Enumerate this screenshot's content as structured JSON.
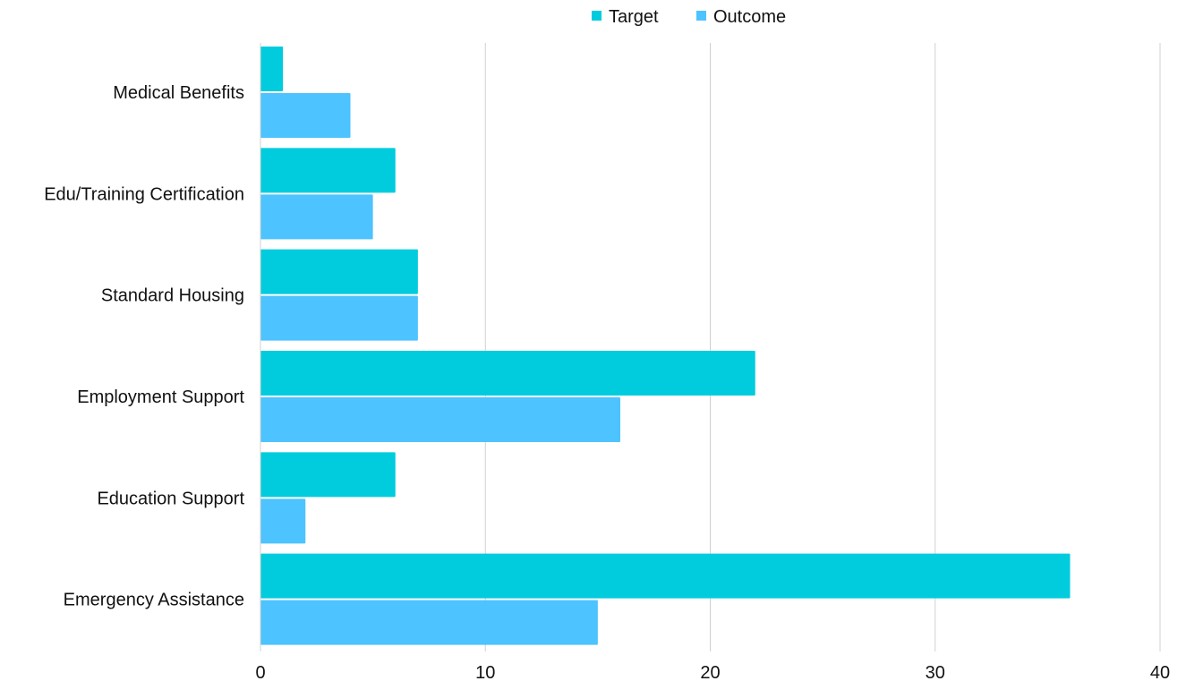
{
  "chart_data": {
    "type": "bar",
    "orientation": "horizontal",
    "categories": [
      "Medical Benefits",
      "Edu/Training Certification",
      "Standard Housing",
      "Employment Support",
      "Education Support",
      "Emergency Assistance"
    ],
    "series": [
      {
        "name": "Target",
        "color": "#00CCDD",
        "values": [
          1,
          6,
          7,
          22,
          6,
          36
        ]
      },
      {
        "name": "Outcome",
        "color": "#4DC3FF",
        "values": [
          4,
          5,
          7,
          16,
          2,
          15
        ]
      }
    ],
    "xlim": [
      0,
      40
    ],
    "xticks": [
      0,
      10,
      20,
      30,
      40
    ],
    "tick_labels": [
      "0",
      "10",
      "20",
      "30",
      "40"
    ],
    "grid": true,
    "legend_position": "top-center",
    "title": "",
    "xlabel": "",
    "ylabel": ""
  }
}
